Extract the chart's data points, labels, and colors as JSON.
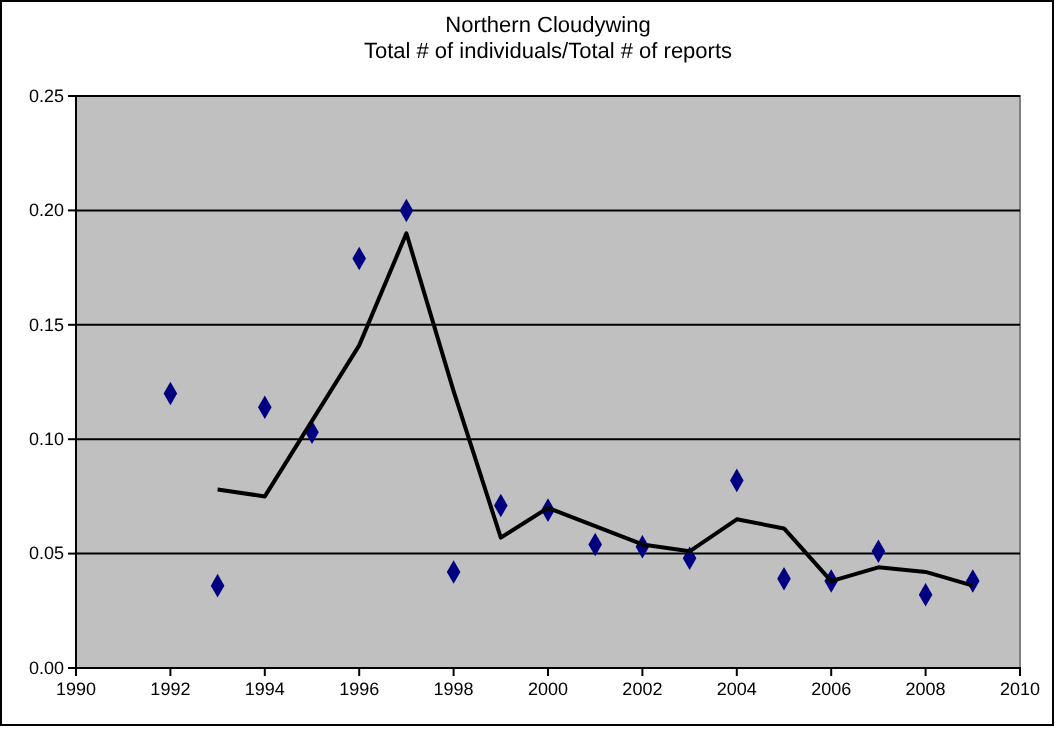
{
  "chart_data": {
    "type": "scatter",
    "title": "Northern Cloudywing\nTotal # of individuals/Total # of reports",
    "series": [
      {
        "type": "scatter",
        "color": "#000080",
        "marker": "diamond",
        "x": [
          1992,
          1993,
          1994,
          1995,
          1996,
          1997,
          1998,
          1999,
          2000,
          2001,
          2002,
          2003,
          2004,
          2005,
          2006,
          2007,
          2008,
          2009
        ],
        "values": [
          0.12,
          0.036,
          0.114,
          0.103,
          0.179,
          0.2,
          0.042,
          0.071,
          0.069,
          0.054,
          0.053,
          0.048,
          0.082,
          0.039,
          0.038,
          0.051,
          0.032,
          0.038
        ]
      },
      {
        "type": "line",
        "color": "#000000",
        "marker": "none",
        "x": [
          1993,
          1994,
          1995,
          1996,
          1997,
          1998,
          1999,
          2000,
          2001,
          2002,
          2003,
          2004,
          2005,
          2006,
          2007,
          2008,
          2009
        ],
        "values": [
          0.078,
          0.075,
          0.108,
          0.141,
          0.19,
          0.121,
          0.057,
          0.07,
          0.062,
          0.054,
          0.051,
          0.065,
          0.061,
          0.038,
          0.044,
          0.042,
          0.036
        ]
      }
    ],
    "xlim": [
      1990,
      2010
    ],
    "xticks": [
      1990,
      1992,
      1994,
      1996,
      1998,
      2000,
      2002,
      2004,
      2006,
      2008,
      2010
    ],
    "ylim": [
      0,
      0.25
    ],
    "yticks": [
      {
        "value": 0,
        "label": "0.00"
      },
      {
        "value": 0.05,
        "label": "0.05"
      },
      {
        "value": 0.1,
        "label": "0.10"
      },
      {
        "value": 0.15,
        "label": "0.15"
      },
      {
        "value": 0.2,
        "label": "0.20"
      },
      {
        "value": 0.25,
        "label": "0.25"
      }
    ],
    "grid": "y"
  }
}
